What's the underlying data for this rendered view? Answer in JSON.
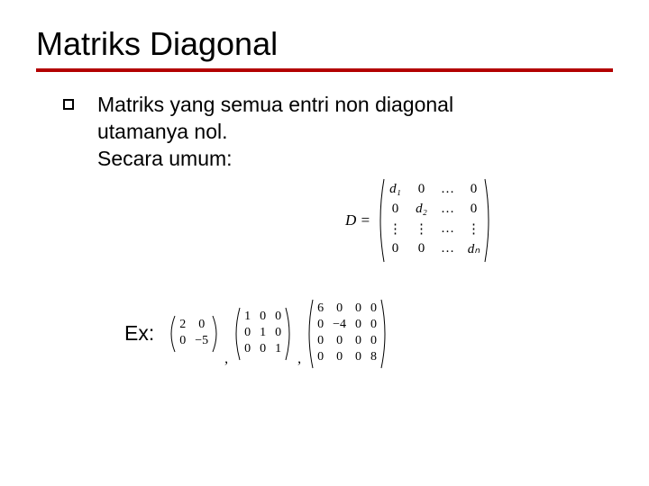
{
  "title": "Matriks Diagonal",
  "underline_color": "#b30000",
  "bullet": {
    "line1": "Matriks yang semua entri non diagonal",
    "line2": "utamanya nol.",
    "line3": "Secara umum:"
  },
  "general_formula": {
    "lhs": "D =",
    "matrix": {
      "cols": 4,
      "rows": [
        [
          "d1_it",
          "0",
          "…",
          "0"
        ],
        [
          "0",
          "d2_it",
          "…",
          "0"
        ],
        [
          "⋮",
          "⋮",
          "…",
          "⋮"
        ],
        [
          "0",
          "0",
          "…",
          "dn_it"
        ]
      ],
      "labels": {
        "d1_it": "d₁",
        "d2_it": "d₂",
        "dn_it": "dₙ"
      }
    }
  },
  "examples_label": "Ex:",
  "examples": [
    {
      "cols": 2,
      "rows": [
        [
          "2",
          "0"
        ],
        [
          "0",
          "−5"
        ]
      ]
    },
    {
      "cols": 3,
      "rows": [
        [
          "1",
          "0",
          "0"
        ],
        [
          "0",
          "1",
          "0"
        ],
        [
          "0",
          "0",
          "1"
        ]
      ]
    },
    {
      "cols": 4,
      "rows": [
        [
          "6",
          "0",
          "0",
          "0"
        ],
        [
          "0",
          "−4",
          "0",
          "0"
        ],
        [
          "0",
          "0",
          "0",
          "0"
        ],
        [
          "0",
          "0",
          "0",
          "8"
        ]
      ]
    }
  ]
}
